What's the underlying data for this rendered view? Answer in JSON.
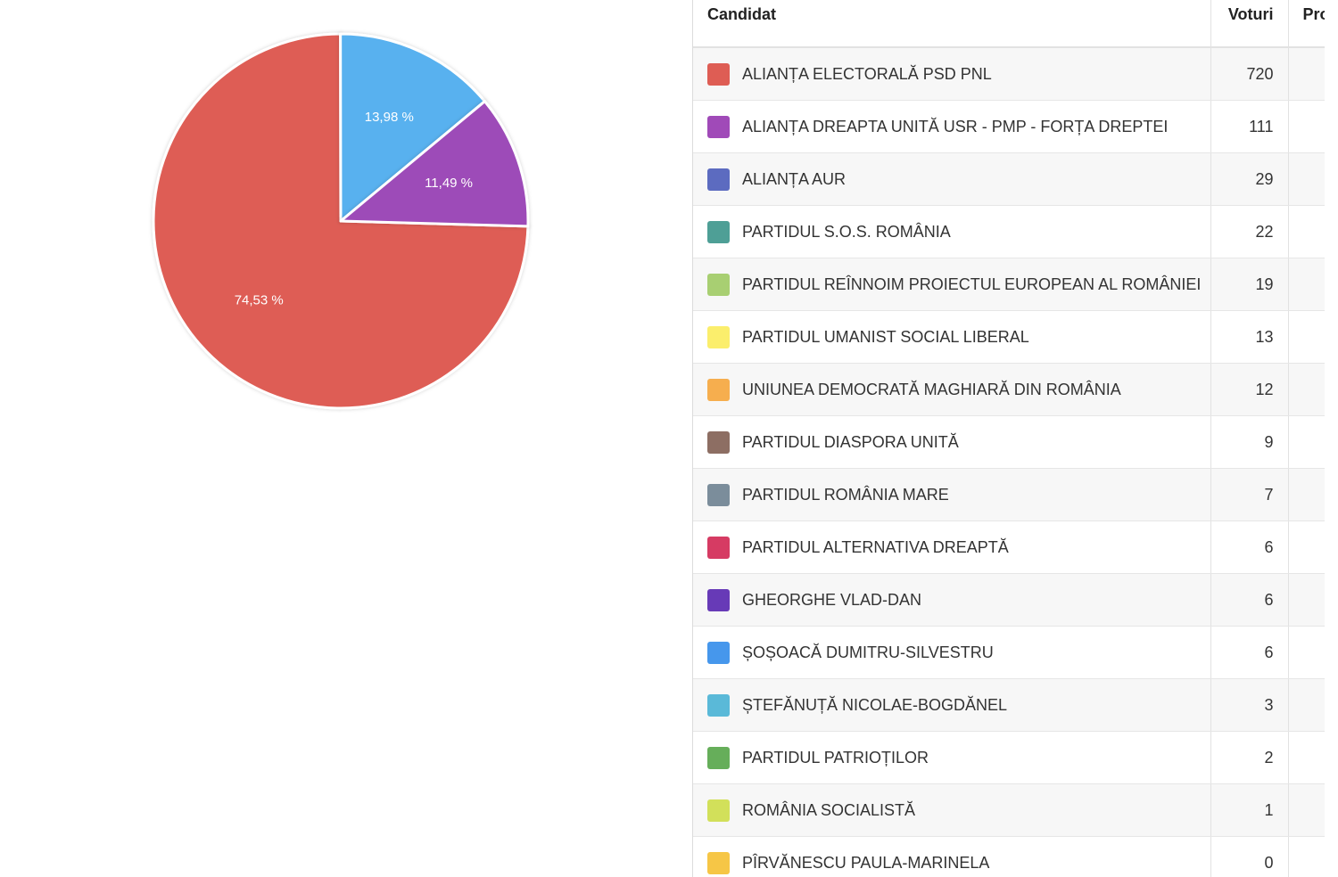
{
  "chart_data": {
    "type": "pie",
    "slices": [
      {
        "label": "ALIANȚA ELECTORALĂ PSD PNL",
        "percent": 74.53,
        "percent_label": "74,53 %",
        "color": "#de5d54"
      },
      {
        "label": "",
        "percent": 13.98,
        "percent_label": "13,98 %",
        "color": "#59b1ef"
      },
      {
        "label": "",
        "percent": 11.49,
        "percent_label": "11,49 %",
        "color": "#9d4bb8"
      }
    ]
  },
  "table": {
    "headers": {
      "candidate": "Candidat",
      "votes": "Voturi",
      "percent": "Procent"
    },
    "rows": [
      {
        "name": "ALIANȚA ELECTORALĂ PSD PNL",
        "votes": "720",
        "color": "#de5d54"
      },
      {
        "name": "ALIANȚA DREAPTA UNITĂ USR - PMP - FORȚA DREPTEI",
        "votes": "111",
        "color": "#a04ab8"
      },
      {
        "name": "ALIANȚA AUR",
        "votes": "29",
        "color": "#5c6bc0"
      },
      {
        "name": "PARTIDUL S.O.S. ROMÂNIA",
        "votes": "22",
        "color": "#4e9f96"
      },
      {
        "name": "PARTIDUL REÎNNOIM PROIECTUL EUROPEAN AL ROMÂNIEI",
        "votes": "19",
        "color": "#a8cf72"
      },
      {
        "name": "PARTIDUL UMANIST SOCIAL LIBERAL",
        "votes": "13",
        "color": "#fbee6c"
      },
      {
        "name": "UNIUNEA DEMOCRATĂ MAGHIARĂ DIN ROMÂNIA",
        "votes": "12",
        "color": "#f6ae4e"
      },
      {
        "name": "PARTIDUL DIASPORA UNITĂ",
        "votes": "9",
        "color": "#8d6e63"
      },
      {
        "name": "PARTIDUL ROMÂNIA MARE",
        "votes": "7",
        "color": "#7b8d9b"
      },
      {
        "name": "PARTIDUL ALTERNATIVA DREAPTĂ",
        "votes": "6",
        "color": "#d63b63"
      },
      {
        "name": "GHEORGHE VLAD-DAN",
        "votes": "6",
        "color": "#673ab7"
      },
      {
        "name": "ȘOȘOACĂ DUMITRU-SILVESTRU",
        "votes": "6",
        "color": "#4697ec"
      },
      {
        "name": "ȘTEFĂNUȚĂ NICOLAE-BOGDĂNEL",
        "votes": "3",
        "color": "#5ab9d8"
      },
      {
        "name": "PARTIDUL PATRIOȚILOR",
        "votes": "2",
        "color": "#66ae5a"
      },
      {
        "name": "ROMÂNIA SOCIALISTĂ",
        "votes": "1",
        "color": "#d2e05a"
      },
      {
        "name": "PÎRVĂNESCU PAULA-MARINELA",
        "votes": "0",
        "color": "#f6c646"
      }
    ]
  }
}
